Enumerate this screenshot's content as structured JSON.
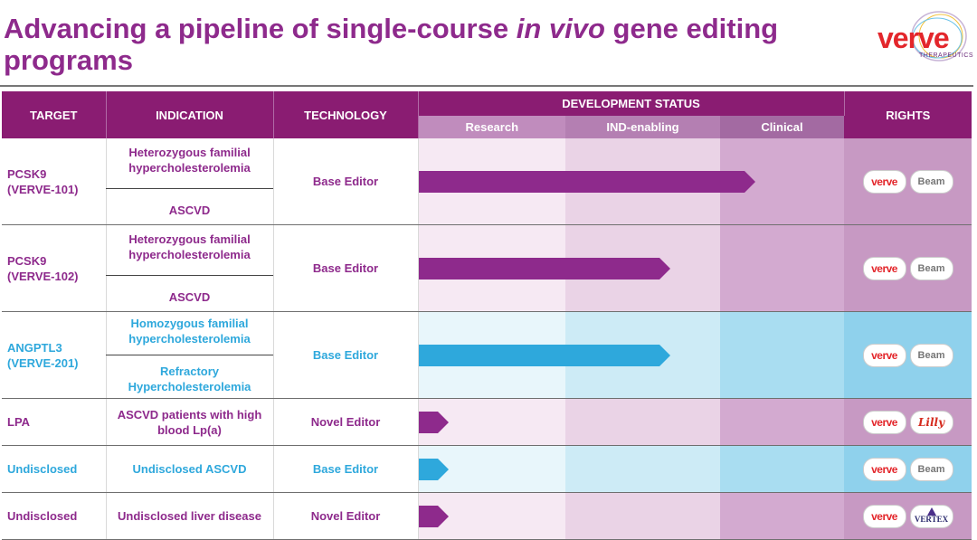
{
  "title": "Advancing a pipeline of single-course in vivo gene editing programs",
  "title_parts": {
    "a": "Advancing a pipeline of single-course ",
    "b": "in vivo",
    "c": " gene editing programs"
  },
  "logo": {
    "word": "verve",
    "sub": "THERAPEUTICS"
  },
  "headers": {
    "target": "TARGET",
    "indication": "INDICATION",
    "technology": "TECHNOLOGY",
    "status": "DEVELOPMENT STATUS",
    "rights": "RIGHTS"
  },
  "stages": [
    "Research",
    "IND-enabling",
    "Clinical"
  ],
  "colors": {
    "purple": "#8e2a8c",
    "blue": "#2ea8dc",
    "header": "#8a1c72"
  },
  "rows": [
    {
      "target_a": "PCSK9",
      "target_b": "(VERVE-101)",
      "ind1": "Heterozygous familial hypercholesterolemia",
      "ind2": "ASCVD",
      "tech": "Base Editor",
      "progress": 0.79,
      "color": "purple",
      "partners": [
        "Verve",
        "Beam"
      ]
    },
    {
      "target_a": "PCSK9",
      "target_b": "(VERVE-102)",
      "ind1": "Heterozygous familial hypercholesterolemia",
      "ind2": "ASCVD",
      "tech": "Base Editor",
      "progress": 0.59,
      "color": "purple",
      "partners": [
        "Verve",
        "Beam"
      ]
    },
    {
      "target_a": "ANGPTL3",
      "target_b": "(VERVE-201)",
      "ind1": "Homozygous familial hypercholesterolemia",
      "ind2": "Refractory Hypercholesterolemia",
      "tech": "Base Editor",
      "progress": 0.59,
      "color": "blue",
      "partners": [
        "Verve",
        "Beam"
      ]
    },
    {
      "target_a": "LPA",
      "target_b": "",
      "ind1": "ASCVD patients with high blood Lp(a)",
      "ind2": "",
      "tech": "Novel Editor",
      "progress": 0.07,
      "color": "purple",
      "partners": [
        "Verve",
        "Lilly"
      ]
    },
    {
      "target_a": "Undisclosed",
      "target_b": "",
      "ind1": "Undisclosed ASCVD",
      "ind2": "",
      "tech": "Base Editor",
      "progress": 0.07,
      "color": "blue",
      "partners": [
        "Verve",
        "Beam"
      ]
    },
    {
      "target_a": "Undisclosed",
      "target_b": "",
      "ind1": "Undisclosed liver disease",
      "ind2": "",
      "tech": "Novel Editor",
      "progress": 0.07,
      "color": "purple",
      "partners": [
        "Verve",
        "Vertex"
      ]
    }
  ]
}
